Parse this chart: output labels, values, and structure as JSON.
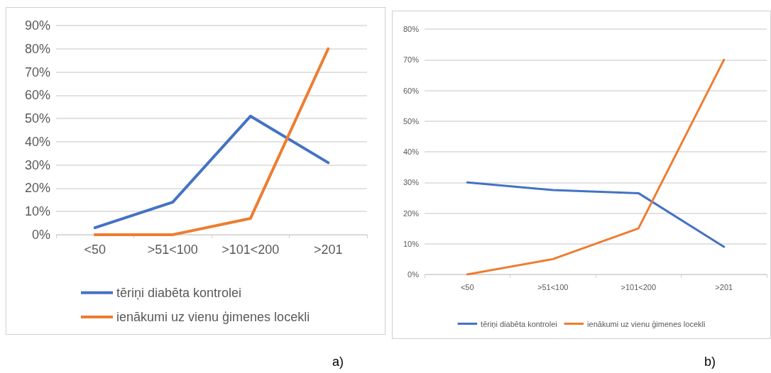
{
  "chart_data": [
    {
      "type": "line",
      "categories": [
        "<50",
        ">51<100",
        ">101<200",
        ">201"
      ],
      "series": [
        {
          "name": "tēriņi diabēta kontrolei",
          "color": "#4472c4",
          "values": [
            3,
            14,
            51,
            31
          ]
        },
        {
          "name": "ienākumi uz vienu ģimenes locekli",
          "color": "#ed7d31",
          "values": [
            0,
            0,
            7,
            80
          ]
        }
      ],
      "ylim": [
        0,
        90
      ],
      "yticks": [
        {
          "value": 0,
          "label": "0%"
        },
        {
          "value": 10,
          "label": "10%"
        },
        {
          "value": 20,
          "label": "20%"
        },
        {
          "value": 30,
          "label": "30%"
        },
        {
          "value": 40,
          "label": "40%"
        },
        {
          "value": 50,
          "label": "50%"
        },
        {
          "value": 60,
          "label": "60%"
        },
        {
          "value": 70,
          "label": "70%"
        },
        {
          "value": 80,
          "label": "80%"
        },
        {
          "value": 90,
          "label": "90%"
        }
      ],
      "grid": "y",
      "legend": "bottom",
      "marker": "none",
      "line_style": "solid",
      "annotations": [
        "a)"
      ]
    },
    {
      "type": "line",
      "categories": [
        "<50",
        ">51<100",
        ">101<200",
        ">201"
      ],
      "series": [
        {
          "name": "tēriņi diabēta kontrolei",
          "color": "#4472c4",
          "values": [
            30,
            27.5,
            26.5,
            9
          ]
        },
        {
          "name": "ienākumi uz vienu ģimenes locekli",
          "color": "#ed7d31",
          "values": [
            0,
            5,
            15,
            70
          ]
        }
      ],
      "ylim": [
        0,
        80
      ],
      "yticks": [
        {
          "value": 0,
          "label": "0%"
        },
        {
          "value": 10,
          "label": "10%"
        },
        {
          "value": 20,
          "label": "20%"
        },
        {
          "value": 30,
          "label": "30%"
        },
        {
          "value": 40,
          "label": "40%"
        },
        {
          "value": 50,
          "label": "50%"
        },
        {
          "value": 60,
          "label": "60%"
        },
        {
          "value": 70,
          "label": "70%"
        },
        {
          "value": 80,
          "label": "80%"
        }
      ],
      "grid": "y",
      "legend": "bottom",
      "marker": "none",
      "line_style": "solid",
      "annotations": [
        "b)"
      ]
    }
  ]
}
